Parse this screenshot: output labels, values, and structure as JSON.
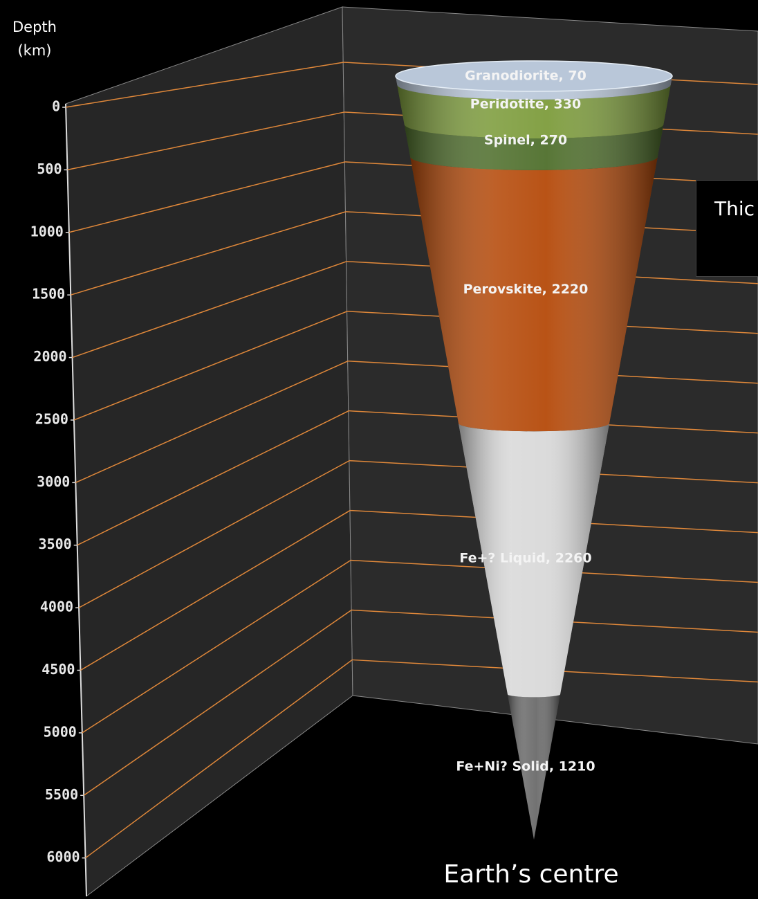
{
  "chart_data": {
    "type": "stacked-cone",
    "y_label": "Depth (km)",
    "values": [
      70,
      330,
      270,
      2220,
      2260,
      1210
    ],
    "value_labels": [
      "Granodiorite, 70",
      "Peridotite, 330",
      "Spinel, 270",
      "Perovskite, 2220",
      "Fe+? Liquid, 2260",
      "Fe+Ni? Solid, 1210"
    ],
    "colors": [
      "#b9c7d9",
      "#7d9c3c",
      "#4f6f2c",
      "#b54a0a",
      "#d9d9d9",
      "#6b6b6b"
    ],
    "ylim": [
      0,
      6400
    ],
    "yticks": [
      0,
      500,
      1000,
      1500,
      2000,
      2500,
      3000,
      3500,
      4000,
      4500,
      5000,
      5500,
      6000
    ],
    "y_reversed": true,
    "grid": true,
    "grid_color": "#e0883a",
    "annotations": {
      "box": "Thic",
      "bottom": "Earth’s centre"
    }
  }
}
